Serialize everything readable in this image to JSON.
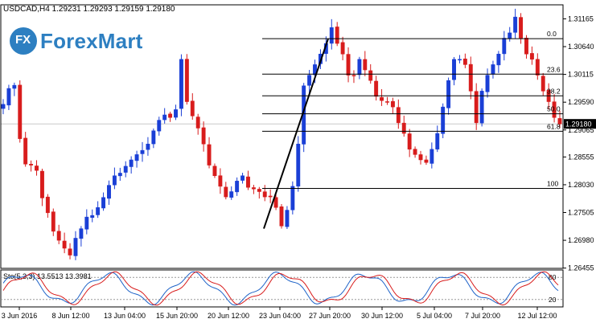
{
  "header": {
    "symbol_line": "USDCAD,H4  1.29231 1.29293 1.29159 1.29180"
  },
  "logo": {
    "mark": "FX",
    "name": "ForexMart"
  },
  "colors": {
    "bull": "#1a3fd6",
    "bear": "#d81c1c",
    "stoch_main": "#1e63c8",
    "stoch_signal": "#d81c1c",
    "fib": "#000000",
    "grid": "#c8c8c8"
  },
  "chart_data": {
    "type": "candlestick",
    "symbol": "USDCAD,H4",
    "ohlc_header": {
      "open": 1.29231,
      "high": 1.29293,
      "low": 1.29159,
      "close": 1.2918
    },
    "current_price": 1.2918,
    "current_price_label": "1.29180",
    "price_ylim": [
      1.2645,
      1.3143
    ],
    "y_ticks": [
      1.31165,
      1.3064,
      1.30115,
      1.2959,
      1.29065,
      1.28555,
      1.2803,
      1.27505,
      1.2698,
      1.26455
    ],
    "x_ticks": [
      "3 Jun 2016",
      "8 Jun 12:00",
      "13 Jun 04:00",
      "15 Jun 20:00",
      "20 Jun 12:00",
      "23 Jun 04:00",
      "27 Jun 20:00",
      "30 Jun 12:00",
      "5 Jul 04:00",
      "7 Jul 20:00",
      "12 Jul 12:00"
    ],
    "series": [
      {
        "name": "close",
        "values": [
          1.2955,
          1.2985,
          1.2991,
          1.289,
          1.2842,
          1.284,
          1.283,
          1.2778,
          1.275,
          1.2715,
          1.2698,
          1.2683,
          1.267,
          1.2702,
          1.272,
          1.2742,
          1.2745,
          1.276,
          1.2779,
          1.2802,
          1.282,
          1.2825,
          1.2838,
          1.285,
          1.286,
          1.2868,
          1.288,
          1.2905,
          1.2925,
          1.2935,
          1.293,
          1.2945,
          1.304,
          1.296,
          1.2933,
          1.291,
          1.288,
          1.284,
          1.282,
          1.28,
          1.278,
          1.279,
          1.281,
          1.282,
          1.2798,
          1.2795,
          1.279,
          1.278,
          1.278,
          1.276,
          1.2725,
          1.2755,
          1.28,
          1.288,
          1.299,
          1.301,
          1.303,
          1.305,
          1.307,
          1.31,
          1.307,
          1.305,
          1.301,
          1.301,
          1.304,
          1.302,
          1.3,
          1.297,
          1.2962,
          1.296,
          1.295,
          1.292,
          1.29,
          1.287,
          1.286,
          1.285,
          1.2845,
          1.287,
          1.29,
          1.295,
          1.3,
          1.304,
          1.304,
          1.303,
          1.298,
          1.292,
          1.298,
          1.301,
          1.303,
          1.305,
          1.308,
          1.309,
          1.312,
          1.308,
          1.305,
          1.304,
          1.301,
          1.298,
          1.296,
          1.293,
          1.2918
        ]
      }
    ],
    "fib_levels": [
      {
        "label": "0.0",
        "price": 1.3079
      },
      {
        "label": "23.6",
        "price": 1.3012
      },
      {
        "label": "38.2",
        "price": 1.2971
      },
      {
        "label": "50.0",
        "price": 1.2937
      },
      {
        "label": "61.8",
        "price": 1.2904
      },
      {
        "label": "100",
        "price": 1.2796
      }
    ],
    "trendline": {
      "from_price": 1.272,
      "to_price": 1.3079
    },
    "stochastic": {
      "label": "Sto(5,3,3) 13.5513 13.3981",
      "main": 13.5513,
      "signal": 13.3981,
      "levels": [
        80,
        20
      ],
      "level_labels": [
        "80",
        "20"
      ],
      "ylim": [
        0,
        100
      ]
    }
  }
}
